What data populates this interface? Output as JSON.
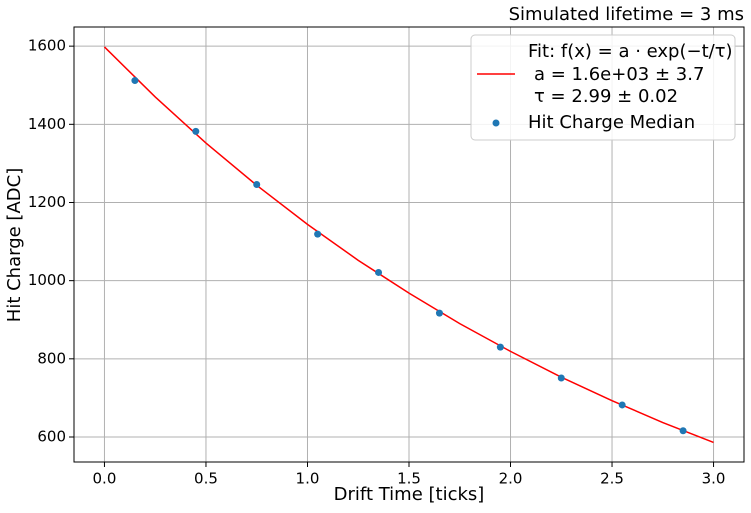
{
  "chart_data": {
    "type": "line",
    "title": "Simulated lifetime = 3 ms",
    "xlabel": "Drift Time [ticks]",
    "ylabel": "Hit Charge [ADC]",
    "xlim": [
      -0.15,
      3.15
    ],
    "ylim": [
      536,
      1649
    ],
    "xticks": [
      {
        "value": 0,
        "label": "0.0"
      },
      0.5,
      {
        "value": 1,
        "label": "1.0"
      },
      1.5,
      {
        "value": 2,
        "label": "2.0"
      },
      2.5,
      {
        "value": 3,
        "label": "3.0"
      }
    ],
    "yticks": [
      600,
      800,
      1000,
      1200,
      1400,
      1600
    ],
    "grid": true,
    "legend": "upper right",
    "series": [
      {
        "name": "Fit: f(x) = a · exp(−t/τ)",
        "color": "#ff0000",
        "style": "line",
        "fit_params": [
          "a = 1.6e+03 ± 3.7",
          "τ = 2.99 ± 0.02"
        ],
        "x": [
          0,
          0.25,
          0.5,
          0.75,
          1.0,
          1.25,
          1.5,
          1.75,
          2.0,
          2.25,
          2.5,
          2.75,
          3.0
        ],
        "values": [
          1598,
          1470,
          1352,
          1244,
          1144,
          1052,
          968,
          890,
          819,
          753,
          693,
          637,
          586
        ]
      },
      {
        "name": "Hit Charge Median",
        "color": "#1f77b4",
        "style": "marker",
        "x": [
          0.15,
          0.45,
          0.75,
          1.05,
          1.35,
          1.65,
          1.95,
          2.25,
          2.55,
          2.85
        ],
        "values": [
          1512,
          1382,
          1246,
          1119,
          1021,
          917,
          830,
          751,
          682,
          616
        ]
      }
    ]
  }
}
